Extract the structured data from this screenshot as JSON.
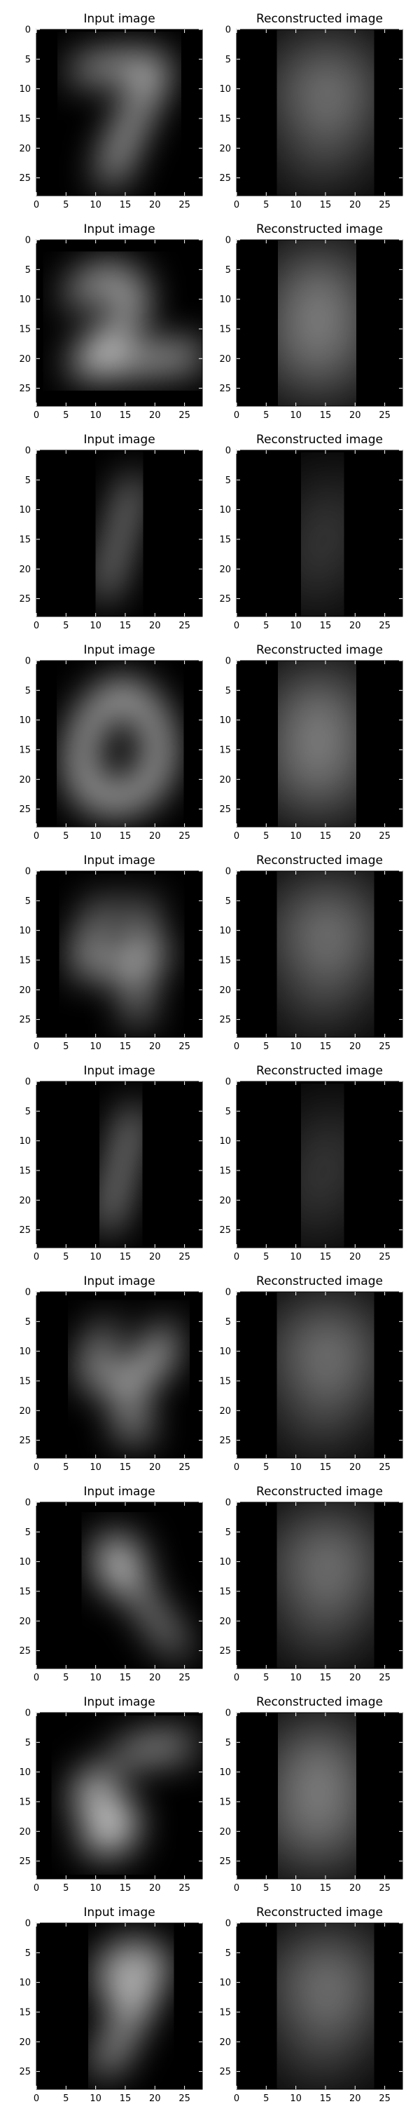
{
  "chart_data": {
    "type": "image-grid",
    "columns": [
      {
        "title": "Input image"
      },
      {
        "title": "Reconstructed image"
      }
    ],
    "axis": {
      "xlim": [
        0,
        28
      ],
      "ylim": [
        28,
        0
      ],
      "xticks": [
        0,
        5,
        10,
        15,
        20,
        25
      ],
      "yticks": [
        0,
        5,
        10,
        15,
        20,
        25
      ]
    },
    "rows": [
      {
        "input_digit": "7",
        "reconstructed_digit": "9"
      },
      {
        "input_digit": "2",
        "reconstructed_digit": "8"
      },
      {
        "input_digit": "1",
        "reconstructed_digit": "1"
      },
      {
        "input_digit": "0",
        "reconstructed_digit": "8"
      },
      {
        "input_digit": "4",
        "reconstructed_digit": "9"
      },
      {
        "input_digit": "1",
        "reconstructed_digit": "1"
      },
      {
        "input_digit": "4",
        "reconstructed_digit": "9"
      },
      {
        "input_digit": "9",
        "reconstructed_digit": "9"
      },
      {
        "input_digit": "5",
        "reconstructed_digit": "8"
      },
      {
        "input_digit": "9",
        "reconstructed_digit": "9"
      }
    ],
    "colors": {
      "background": "#000000",
      "input_stroke": "#f4f4f4",
      "reconstructed_stroke": "#e8e8e8",
      "frame": "#000000",
      "figure_bg": "#ffffff"
    }
  }
}
